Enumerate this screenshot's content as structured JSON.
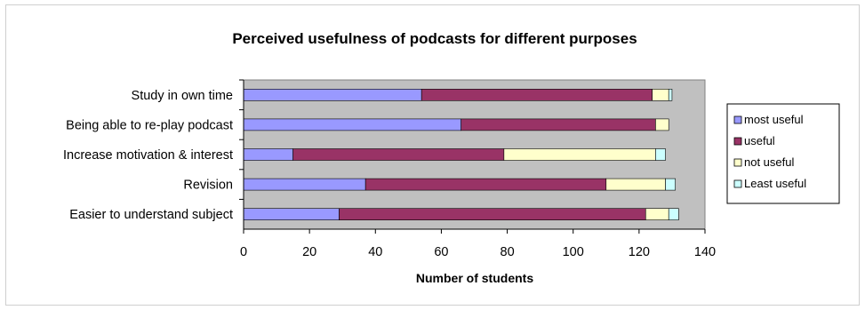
{
  "chart_data": {
    "type": "bar",
    "orientation": "horizontal",
    "stacked": true,
    "title": "Perceived usefulness of podcasts for different purposes",
    "xlabel": "Number of students",
    "ylabel": "",
    "categories": [
      "Study in own time",
      "Being able to re-play podcast",
      "Increase motivation & interest",
      "Revision",
      "Easier to understand subject"
    ],
    "series": [
      {
        "name": "most useful",
        "color": "#9999ff",
        "values": [
          54,
          66,
          15,
          37,
          29
        ]
      },
      {
        "name": "useful",
        "color": "#993366",
        "values": [
          70,
          59,
          64,
          73,
          93
        ]
      },
      {
        "name": "not useful",
        "color": "#ffffcc",
        "values": [
          5,
          4,
          46,
          18,
          7
        ]
      },
      {
        "name": "Least useful",
        "color": "#ccffff",
        "values": [
          1,
          0,
          3,
          3,
          3
        ]
      }
    ],
    "xlim": [
      0,
      140
    ],
    "xticks": [
      0,
      20,
      40,
      60,
      80,
      100,
      120,
      140
    ],
    "grid": false,
    "legend_position": "right",
    "plot_background": "#c0c0c0"
  }
}
